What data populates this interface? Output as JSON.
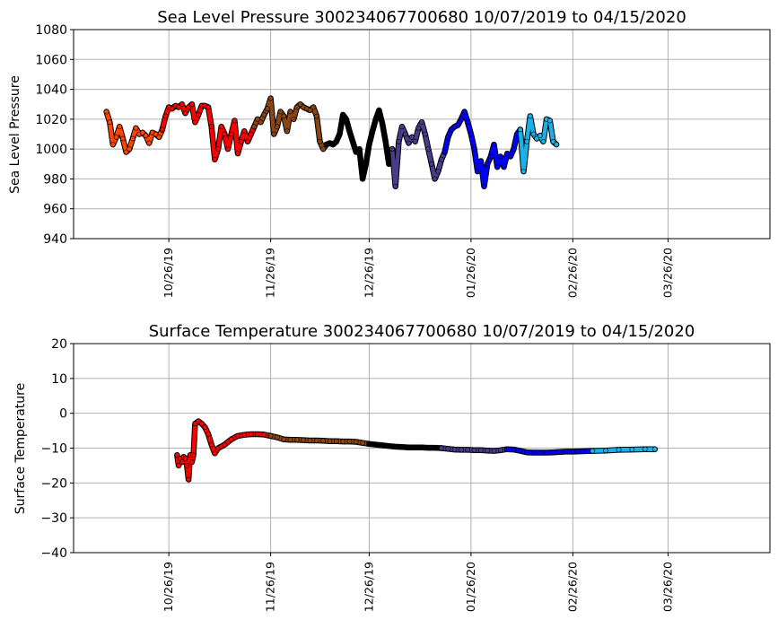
{
  "chart_data": [
    {
      "type": "scatter",
      "title": "Sea Level Pressure 300234067700680  10/07/2019 to 04/15/2020",
      "xlabel": "",
      "ylabel": "Sea Level Pressure",
      "ylim": [
        940,
        1080
      ],
      "yticks": [
        "940",
        "960",
        "980",
        "1000",
        "1020",
        "1040",
        "1060",
        "1080"
      ],
      "xticks": [
        {
          "day": 19,
          "label": "10/26/19"
        },
        {
          "day": 50,
          "label": "11/26/19"
        },
        {
          "day": 80,
          "label": "12/26/19"
        },
        {
          "day": 111,
          "label": "01/26/20"
        },
        {
          "day": 142,
          "label": "02/26/20"
        },
        {
          "day": 171,
          "label": "03/26/20"
        }
      ],
      "xrange_days": [
        -10,
        202
      ],
      "grid": true,
      "segments": [
        {
          "color": "#ff4500",
          "points": [
            [
              0,
              1025
            ],
            [
              1,
              1018
            ],
            [
              2,
              1003
            ],
            [
              3,
              1008
            ],
            [
              4,
              1015
            ],
            [
              5,
              1007
            ],
            [
              6,
              998
            ],
            [
              7,
              1000
            ],
            [
              8,
              1007
            ],
            [
              9,
              1014
            ],
            [
              10,
              1010
            ],
            [
              11,
              1011
            ],
            [
              12,
              1009
            ],
            [
              13,
              1004
            ],
            [
              14,
              1011
            ],
            [
              15,
              1010
            ],
            [
              16,
              1008
            ],
            [
              17,
              1013
            ]
          ]
        },
        {
          "color": "#ff0000",
          "points": [
            [
              17,
              1013
            ],
            [
              18,
              1022
            ],
            [
              19,
              1028
            ],
            [
              20,
              1027
            ],
            [
              21,
              1029
            ],
            [
              22,
              1028
            ],
            [
              23,
              1030
            ],
            [
              24,
              1024
            ],
            [
              25,
              1028
            ],
            [
              26,
              1030
            ],
            [
              27,
              1018
            ],
            [
              28,
              1023
            ],
            [
              29,
              1029
            ],
            [
              30,
              1029
            ],
            [
              31,
              1028
            ],
            [
              32,
              1015
            ],
            [
              33,
              993
            ],
            [
              34,
              1000
            ],
            [
              35,
              1015
            ],
            [
              36,
              1010
            ],
            [
              37,
              1000
            ],
            [
              38,
              1010
            ],
            [
              39,
              1019
            ],
            [
              40,
              997
            ],
            [
              41,
              1005
            ],
            [
              42,
              1012
            ],
            [
              43,
              1005
            ],
            [
              44,
              1010
            ],
            [
              45,
              1015
            ]
          ]
        },
        {
          "color": "#8b4513",
          "points": [
            [
              45,
              1015
            ],
            [
              46,
              1020
            ],
            [
              47,
              1018
            ],
            [
              48,
              1023
            ],
            [
              49,
              1027
            ],
            [
              50,
              1034
            ],
            [
              51,
              1010
            ],
            [
              52,
              1015
            ],
            [
              53,
              1025
            ],
            [
              54,
              1022
            ],
            [
              55,
              1012
            ],
            [
              56,
              1025
            ],
            [
              57,
              1020
            ],
            [
              58,
              1028
            ],
            [
              59,
              1030
            ],
            [
              60,
              1028
            ],
            [
              61,
              1027
            ],
            [
              62,
              1026
            ],
            [
              63,
              1028
            ],
            [
              64,
              1022
            ],
            [
              65,
              1005
            ],
            [
              66,
              1000
            ],
            [
              67,
              1003
            ]
          ]
        },
        {
          "color": "#000000",
          "points": [
            [
              67,
              1003
            ],
            [
              68,
              1004
            ],
            [
              69,
              1003
            ],
            [
              70,
              1005
            ],
            [
              71,
              1010
            ],
            [
              72,
              1023
            ],
            [
              73,
              1020
            ],
            [
              74,
              1012
            ],
            [
              75,
              1005
            ],
            [
              76,
              998
            ],
            [
              77,
              1000
            ],
            [
              78,
              980
            ],
            [
              79,
              990
            ],
            [
              80,
              1003
            ],
            [
              81,
              1012
            ],
            [
              82,
              1020
            ],
            [
              83,
              1026
            ],
            [
              84,
              1017
            ],
            [
              85,
              1005
            ],
            [
              86,
              990
            ],
            [
              87,
              1000
            ]
          ]
        },
        {
          "color": "#483d8b",
          "points": [
            [
              87,
              1000
            ],
            [
              88,
              975
            ],
            [
              89,
              1005
            ],
            [
              90,
              1015
            ],
            [
              91,
              1010
            ],
            [
              92,
              1004
            ],
            [
              93,
              1008
            ],
            [
              94,
              1005
            ],
            [
              95,
              1014
            ],
            [
              96,
              1018
            ],
            [
              97,
              1010
            ],
            [
              98,
              1000
            ],
            [
              99,
              990
            ],
            [
              100,
              980
            ],
            [
              101,
              985
            ],
            [
              102,
              993
            ],
            [
              103,
              998
            ]
          ]
        },
        {
          "color": "#0000ff",
          "points": [
            [
              103,
              998
            ],
            [
              104,
              1008
            ],
            [
              105,
              1013
            ],
            [
              106,
              1015
            ],
            [
              107,
              1016
            ],
            [
              108,
              1020
            ],
            [
              109,
              1025
            ],
            [
              110,
              1018
            ],
            [
              111,
              1010
            ],
            [
              112,
              1000
            ],
            [
              113,
              985
            ],
            [
              114,
              992
            ],
            [
              115,
              975
            ],
            [
              116,
              990
            ],
            [
              117,
              995
            ],
            [
              118,
              1003
            ],
            [
              119,
              988
            ],
            [
              120,
              995
            ],
            [
              121,
              988
            ],
            [
              122,
              997
            ],
            [
              123,
              995
            ],
            [
              124,
              1000
            ],
            [
              125,
              1010
            ],
            [
              126,
              1013
            ]
          ]
        },
        {
          "color": "#1ab0e8",
          "points": [
            [
              126,
              1013
            ],
            [
              127,
              985
            ],
            [
              128,
              1005
            ],
            [
              129,
              1022
            ],
            [
              130,
              1010
            ],
            [
              131,
              1007
            ],
            [
              132,
              1009
            ],
            [
              133,
              1005
            ],
            [
              134,
              1020
            ],
            [
              135,
              1019
            ],
            [
              136,
              1005
            ],
            [
              137,
              1003
            ]
          ]
        }
      ]
    },
    {
      "type": "scatter",
      "title": "Surface Temperature 300234067700680  10/07/2019 to 04/15/2020",
      "xlabel": "",
      "ylabel": "Surface Temperature",
      "ylim": [
        -40,
        20
      ],
      "yticks": [
        "−40",
        "−30",
        "−20",
        "−10",
        "0",
        "10",
        "20"
      ],
      "xticks": [
        {
          "day": 19,
          "label": "10/26/19"
        },
        {
          "day": 50,
          "label": "11/26/19"
        },
        {
          "day": 80,
          "label": "12/26/19"
        },
        {
          "day": 111,
          "label": "01/26/20"
        },
        {
          "day": 142,
          "label": "02/26/20"
        },
        {
          "day": 171,
          "label": "03/26/20"
        }
      ],
      "xrange_days": [
        -10,
        202
      ],
      "grid": true,
      "segments": [
        {
          "color": "#ff0000",
          "points": [
            [
              21.5,
              -12
            ],
            [
              22,
              -15
            ],
            [
              22.5,
              -13
            ],
            [
              23,
              -14
            ],
            [
              23.5,
              -12.5
            ],
            [
              24,
              -13
            ],
            [
              24.5,
              -15
            ],
            [
              25,
              -19
            ],
            [
              25.5,
              -12
            ],
            [
              26,
              -14
            ],
            [
              26.5,
              -12
            ],
            [
              27,
              -3
            ],
            [
              28,
              -2.3
            ],
            [
              29,
              -3
            ],
            [
              30,
              -4
            ],
            [
              31,
              -6
            ],
            [
              32,
              -9
            ],
            [
              33,
              -11.5
            ],
            [
              34,
              -10
            ],
            [
              35,
              -9.5
            ],
            [
              36,
              -9
            ],
            [
              38,
              -7.5
            ],
            [
              40,
              -6.5
            ],
            [
              42,
              -6.2
            ],
            [
              44,
              -6.0
            ],
            [
              46,
              -6.0
            ],
            [
              48,
              -6.1
            ],
            [
              50,
              -6.5
            ]
          ]
        },
        {
          "color": "#8b4513",
          "points": [
            [
              50,
              -6.5
            ],
            [
              52,
              -6.9
            ],
            [
              54,
              -7.5
            ],
            [
              56,
              -7.6
            ],
            [
              58,
              -7.6
            ],
            [
              60,
              -7.7
            ],
            [
              62,
              -7.8
            ],
            [
              64,
              -7.8
            ],
            [
              66,
              -7.9
            ],
            [
              68,
              -8.0
            ],
            [
              70,
              -8.0
            ],
            [
              72,
              -8.1
            ],
            [
              74,
              -8.1
            ],
            [
              76,
              -8.2
            ],
            [
              78,
              -8.5
            ],
            [
              80,
              -8.8
            ]
          ]
        },
        {
          "color": "#000000",
          "points": [
            [
              80,
              -8.8
            ],
            [
              82,
              -9.0
            ],
            [
              84,
              -9.2
            ],
            [
              86,
              -9.4
            ],
            [
              88,
              -9.6
            ],
            [
              90,
              -9.7
            ],
            [
              92,
              -9.8
            ],
            [
              94,
              -9.8
            ],
            [
              96,
              -9.8
            ],
            [
              98,
              -9.9
            ],
            [
              100,
              -9.9
            ],
            [
              102,
              -10.0
            ]
          ]
        },
        {
          "color": "#483d8b",
          "points": [
            [
              102,
              -10.0
            ],
            [
              104,
              -10.2
            ],
            [
              106,
              -10.4
            ],
            [
              108,
              -10.5
            ],
            [
              110,
              -10.5
            ],
            [
              112,
              -10.6
            ],
            [
              114,
              -10.6
            ],
            [
              116,
              -10.7
            ],
            [
              118,
              -10.8
            ],
            [
              120,
              -10.6
            ],
            [
              122,
              -10.3
            ]
          ]
        },
        {
          "color": "#0000ff",
          "points": [
            [
              122,
              -10.3
            ],
            [
              124,
              -10.4
            ],
            [
              126,
              -10.8
            ],
            [
              128,
              -11.2
            ],
            [
              130,
              -11.3
            ],
            [
              132,
              -11.3
            ],
            [
              134,
              -11.3
            ],
            [
              136,
              -11.2
            ],
            [
              138,
              -11.1
            ],
            [
              140,
              -11.0
            ],
            [
              142,
              -11.0
            ],
            [
              145,
              -10.9
            ],
            [
              148,
              -10.8
            ]
          ]
        },
        {
          "color": "#1ab0e8",
          "points": [
            [
              148,
              -10.8
            ],
            [
              152,
              -10.7
            ],
            [
              156,
              -10.5
            ],
            [
              160,
              -10.4
            ],
            [
              164,
              -10.3
            ],
            [
              167,
              -10.3
            ]
          ]
        }
      ]
    }
  ]
}
